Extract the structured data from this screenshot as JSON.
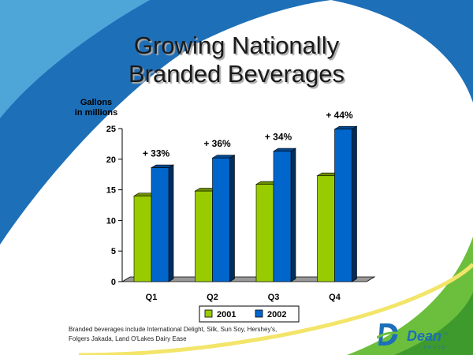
{
  "slide": {
    "title_line1": "Growing Nationally",
    "title_line2": "Branded Beverages",
    "footnote_line1": "Branded beverages include International Delight, Silk, Sun Soy, Hershey's,",
    "footnote_line2": "Folgers Jakada, Land O'Lakes Dairy Ease",
    "logo_word": "Dean",
    "logo_sub": "FOODS",
    "logo_tm": "TM"
  },
  "chart_data": {
    "type": "bar",
    "title": "",
    "ylabel_line1": "Gallons",
    "ylabel_line2": "in millions",
    "xlabel": "",
    "categories": [
      "Q1",
      "Q2",
      "Q3",
      "Q4"
    ],
    "series": [
      {
        "name": "2001",
        "values": [
          14,
          14.8,
          15.9,
          17.3
        ],
        "color": "#99cc00"
      },
      {
        "name": "2002",
        "values": [
          18.6,
          20.2,
          21.3,
          24.9
        ],
        "color": "#0066cc"
      }
    ],
    "growth_labels": [
      "+ 33%",
      "+ 36%",
      "+ 34%",
      "+ 44%"
    ],
    "yticks": [
      0,
      5,
      10,
      15,
      20,
      25
    ],
    "ylim": [
      0,
      25
    ],
    "grid": false,
    "legend": "bottom-center",
    "style": "3d-column"
  }
}
